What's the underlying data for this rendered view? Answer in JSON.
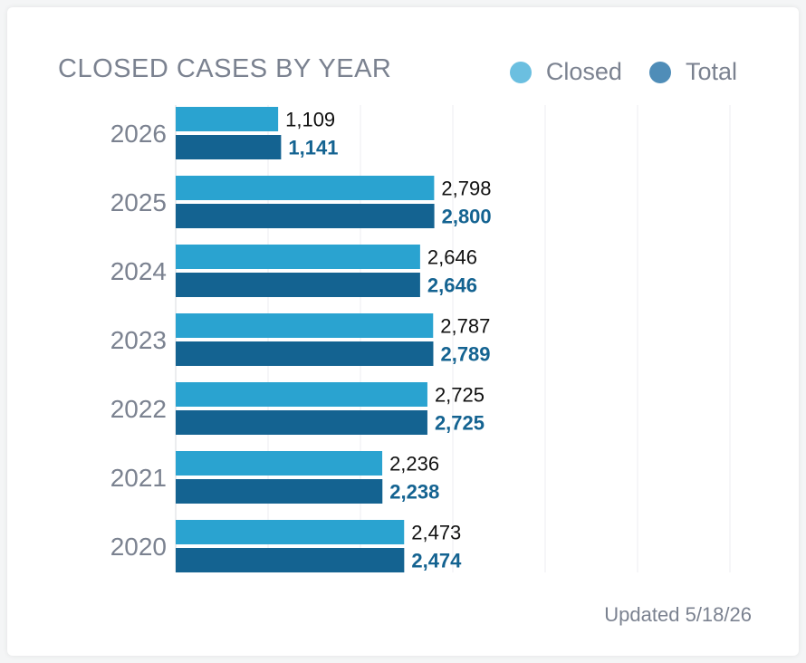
{
  "chart_data": {
    "type": "bar",
    "orientation": "horizontal",
    "title": "CLOSED CASES BY YEAR",
    "categories": [
      "2026",
      "2025",
      "2024",
      "2023",
      "2022",
      "2021",
      "2020"
    ],
    "series": [
      {
        "name": "Closed",
        "color": "#2aa3d0",
        "values": [
          1109,
          2798,
          2646,
          2787,
          2725,
          2236,
          2473
        ],
        "labels": [
          "1,109",
          "2,798",
          "2,646",
          "2,787",
          "2,725",
          "2,236",
          "2,473"
        ]
      },
      {
        "name": "Total",
        "color": "#146391",
        "values": [
          1141,
          2800,
          2646,
          2789,
          2725,
          2238,
          2474
        ],
        "labels": [
          "1,141",
          "2,800",
          "2,646",
          "2,789",
          "2,725",
          "2,238",
          "2,474"
        ]
      }
    ],
    "xlim": [
      0,
      6000
    ],
    "grid": true,
    "legend_position": "top-right",
    "legend_colors": [
      "#6bbfe0",
      "#4f8db8"
    ]
  },
  "footer": {
    "updated_label": "Updated 5/18/26"
  }
}
